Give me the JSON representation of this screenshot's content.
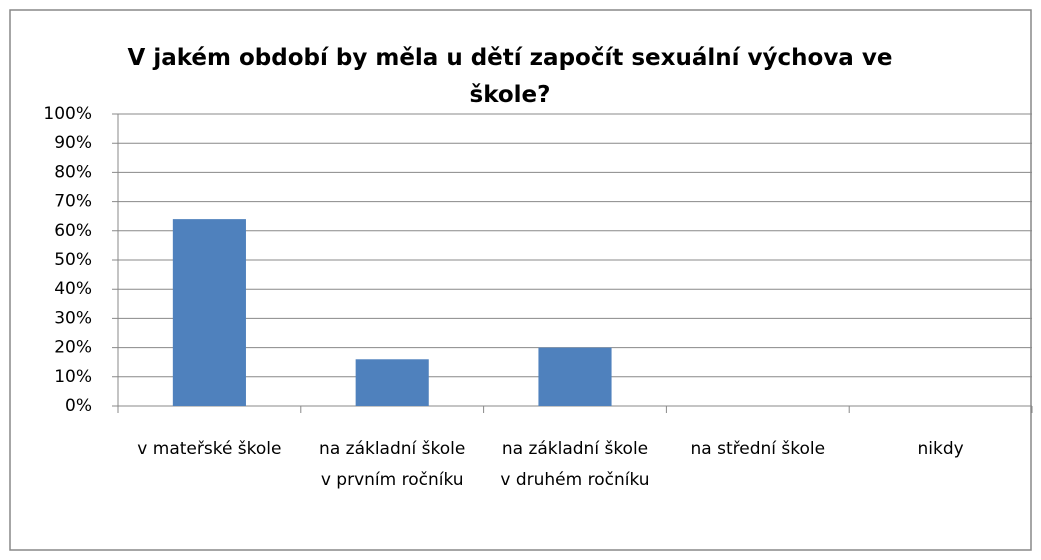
{
  "chart_data": {
    "type": "bar",
    "title": "V jakém období by měla u dětí započít sexuální výchova ve škole?",
    "categories": [
      "v mateřské škole",
      "na základní škole v prvním ročníku",
      "na základní škole v druhém ročníku",
      "na střední škole",
      "nikdy"
    ],
    "values": [
      64,
      16,
      20,
      0,
      0
    ],
    "color": "#4f81bd",
    "ylim": [
      0,
      100
    ],
    "yticks": [
      {
        "value": 0,
        "label": "0%"
      },
      {
        "value": 10,
        "label": "10%"
      },
      {
        "value": 20,
        "label": "20%"
      },
      {
        "value": 30,
        "label": "30%"
      },
      {
        "value": 40,
        "label": "40%"
      },
      {
        "value": 50,
        "label": "50%"
      },
      {
        "value": 60,
        "label": "60%"
      },
      {
        "value": 70,
        "label": "70%"
      },
      {
        "value": 80,
        "label": "80%"
      },
      {
        "value": 90,
        "label": "90%"
      },
      {
        "value": 100,
        "label": "100%"
      }
    ],
    "grid": true
  }
}
